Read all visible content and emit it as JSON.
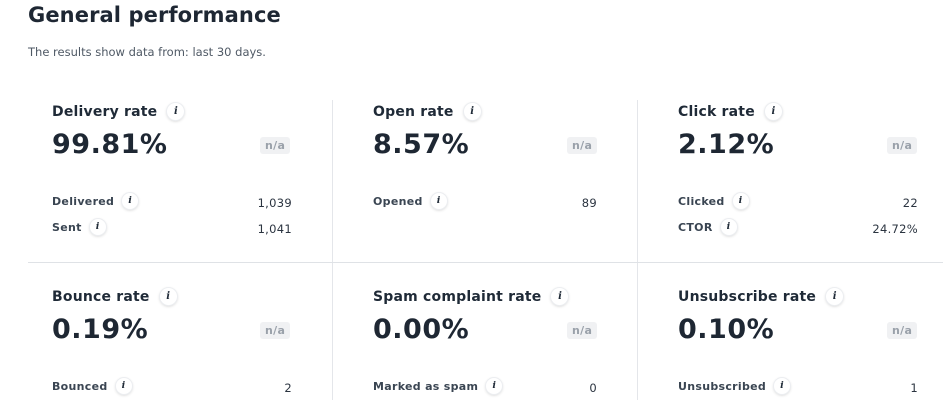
{
  "header": {
    "title": "General performance",
    "subtitle": "The results show data from: last 30 days."
  },
  "na_label": "n/a",
  "cards": [
    {
      "title": "Delivery rate",
      "value": "99.81%",
      "metrics": [
        {
          "label": "Delivered",
          "value": "1,039"
        },
        {
          "label": "Sent",
          "value": "1,041"
        }
      ]
    },
    {
      "title": "Open rate",
      "value": "8.57%",
      "metrics": [
        {
          "label": "Opened",
          "value": "89"
        }
      ]
    },
    {
      "title": "Click rate",
      "value": "2.12%",
      "metrics": [
        {
          "label": "Clicked",
          "value": "22"
        },
        {
          "label": "CTOR",
          "value": "24.72%"
        }
      ]
    },
    {
      "title": "Bounce rate",
      "value": "0.19%",
      "metrics": [
        {
          "label": "Bounced",
          "value": "2"
        }
      ]
    },
    {
      "title": "Spam complaint rate",
      "value": "0.00%",
      "metrics": [
        {
          "label": "Marked as spam",
          "value": "0"
        }
      ]
    },
    {
      "title": "Unsubscribe rate",
      "value": "0.10%",
      "metrics": [
        {
          "label": "Unsubscribed",
          "value": "1"
        }
      ]
    }
  ]
}
